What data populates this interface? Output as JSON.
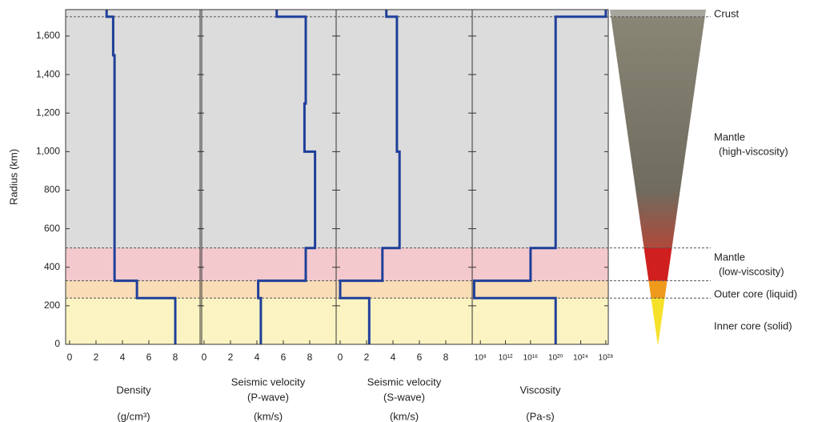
{
  "chart_data": [
    {
      "type": "line",
      "xlabel": [
        "Density",
        "(g/cm³)"
      ],
      "ylabel": "Radius (km)",
      "ylim": [
        0,
        1737
      ],
      "yticks": [
        0,
        200,
        400,
        600,
        800,
        {
          "value": 1000,
          "label": "1,000"
        },
        {
          "value": 1200,
          "label": "1,200"
        },
        {
          "value": 1400,
          "label": "1,400"
        },
        {
          "value": 1600,
          "label": "1,600"
        }
      ],
      "xlim": [
        -0.3,
        10
      ],
      "xticks": [
        0,
        2,
        4,
        6,
        8
      ],
      "series": [
        {
          "color": "#1f3f9a",
          "x": [
            2.8,
            2.8,
            3.3,
            3.3,
            3.4,
            3.4,
            5.1,
            5.1,
            8.0,
            8.0
          ],
          "y": [
            1737,
            1700,
            1700,
            1500,
            1500,
            330,
            330,
            240,
            240,
            0
          ]
        }
      ]
    },
    {
      "type": "line",
      "xlabel": [
        "Seismic velocity",
        "(P-wave)",
        "(km/s)"
      ],
      "xlim": [
        -0.3,
        10
      ],
      "xticks": [
        0,
        2,
        4,
        6,
        8
      ],
      "series": [
        {
          "color": "#1f3f9a",
          "x": [
            5.5,
            5.5,
            7.7,
            7.7,
            7.6,
            7.6,
            8.4,
            8.4,
            7.7,
            7.7,
            4.1,
            4.1,
            4.3,
            4.3
          ],
          "y": [
            1737,
            1700,
            1700,
            1250,
            1250,
            1000,
            1000,
            500,
            500,
            330,
            330,
            240,
            240,
            0
          ]
        }
      ]
    },
    {
      "type": "line",
      "xlabel": [
        "Seismic velocity",
        "(S-wave)",
        "(km/s)"
      ],
      "xlim": [
        -0.3,
        10
      ],
      "xticks": [
        0,
        2,
        4,
        6,
        8
      ],
      "series": [
        {
          "color": "#1f3f9a",
          "x": [
            3.5,
            3.5,
            4.3,
            4.3,
            4.5,
            4.5,
            3.2,
            3.2,
            0,
            0,
            2.2,
            2.2
          ],
          "y": [
            1737,
            1700,
            1700,
            1000,
            1000,
            500,
            500,
            330,
            330,
            240,
            240,
            0
          ]
        }
      ]
    },
    {
      "type": "line",
      "xlabel": [
        "Viscosity",
        "(Pa-s)"
      ],
      "log": true,
      "xlim": [
        5000000.0,
        2.5e+28
      ],
      "xticks": [
        {
          "value": 100000000.0,
          "label": "10⁸"
        },
        {
          "value": 1000000000000.0,
          "label": "10¹²"
        },
        {
          "value": 1e+16,
          "label": "10¹⁶"
        },
        {
          "value": 1e+20,
          "label": "10²⁰"
        },
        {
          "value": 1e+24,
          "label": "10²⁴"
        },
        {
          "value": 1e+28,
          "label": "10²⁸"
        }
      ],
      "series": [
        {
          "color": "#1f3f9a",
          "x": [
            1e+28,
            1e+28,
            1e+20,
            1e+20,
            1e+16,
            1e+16,
            10000000.0,
            10000000.0,
            1e+20,
            1e+20
          ],
          "y": [
            1737,
            1700,
            1700,
            500,
            500,
            330,
            330,
            240,
            240,
            0
          ]
        }
      ]
    }
  ],
  "boundaries": [
    1700,
    500,
    330,
    240
  ],
  "layers": [
    {
      "label": [
        "Crust"
      ]
    },
    {
      "label": [
        "Mantle",
        "(high-viscosity)"
      ]
    },
    {
      "label": [
        "Mantle",
        "(low-viscosity)"
      ]
    },
    {
      "label": [
        "Outer core (liquid)"
      ]
    },
    {
      "label": [
        "Inner core (solid)"
      ]
    }
  ]
}
